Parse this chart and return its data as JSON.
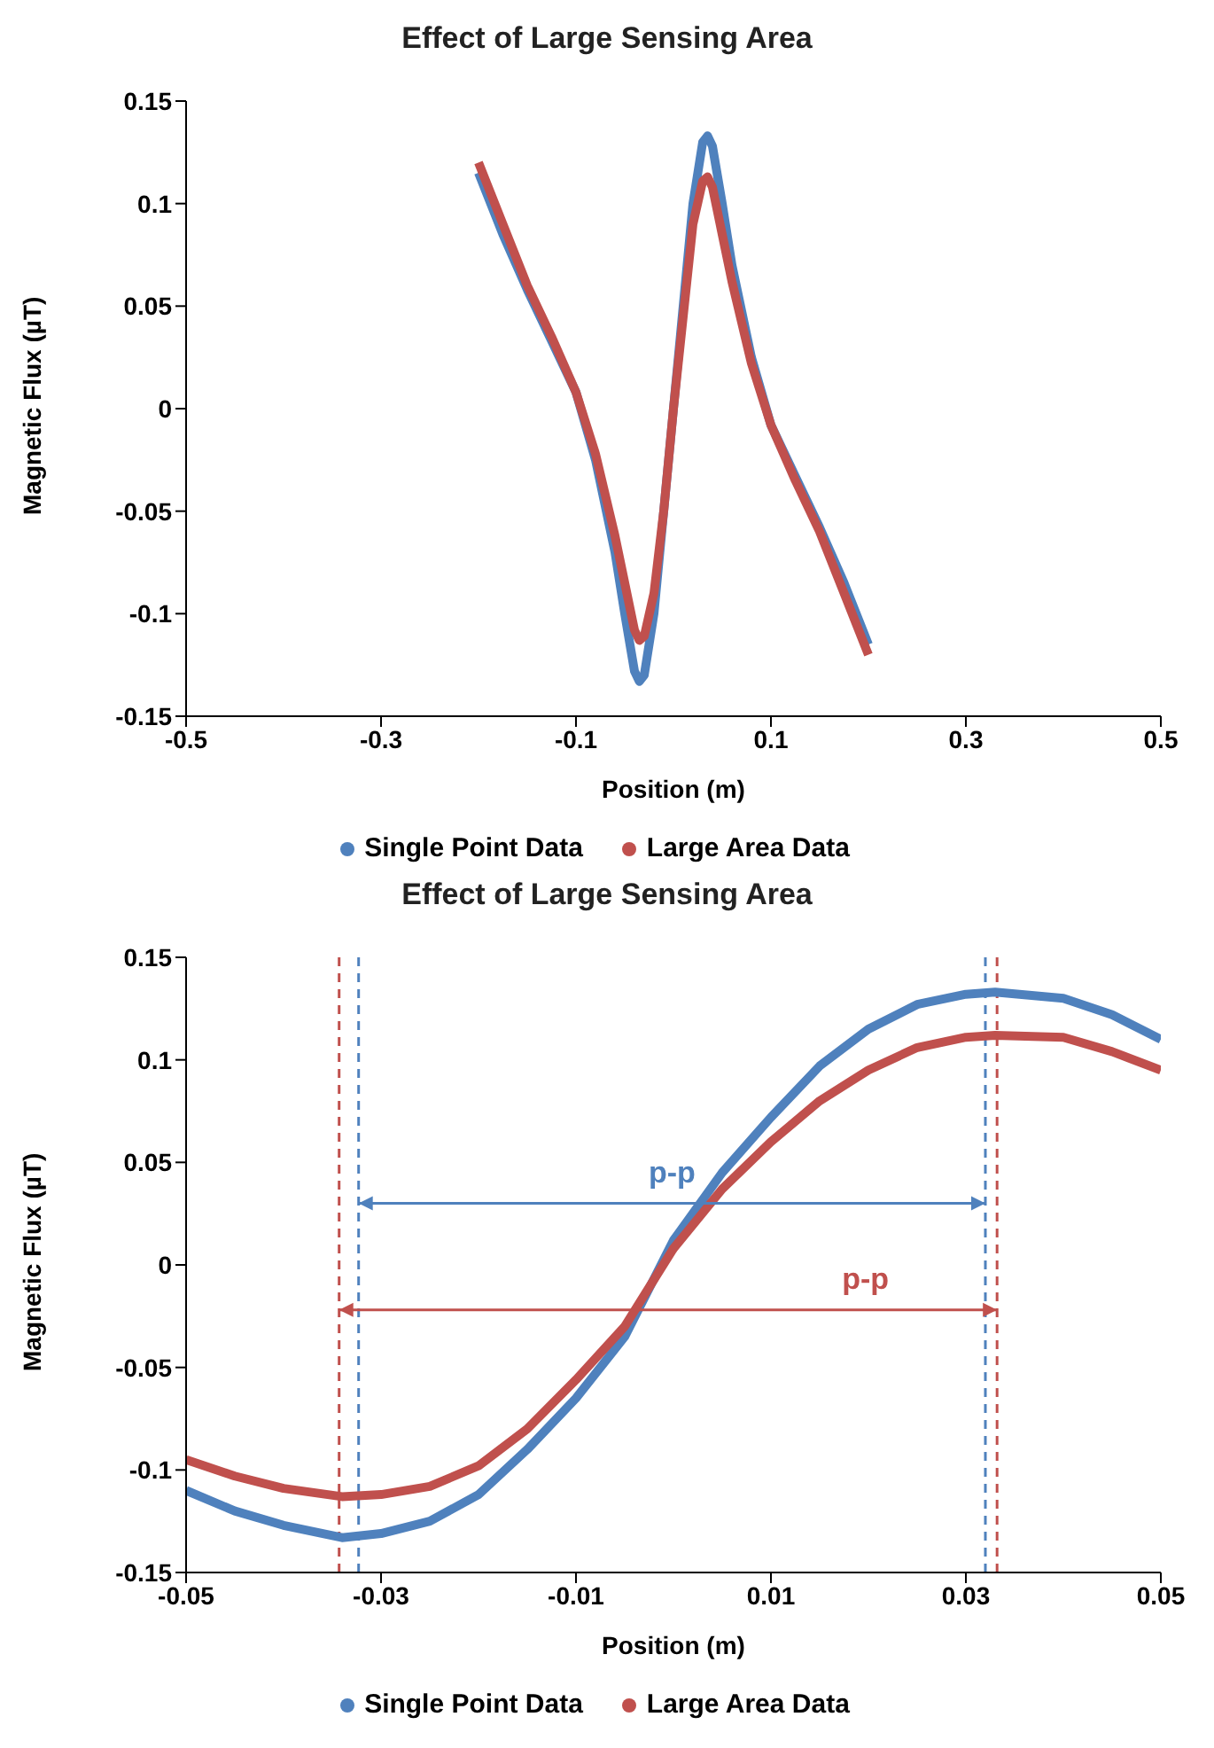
{
  "chart_data": [
    {
      "type": "line",
      "title": "Effect of Large Sensing Area",
      "xlabel": "Position (m)",
      "ylabel": "Magnetic Flux (µT)",
      "xlim": [
        -0.5,
        0.5
      ],
      "xticks": [
        -0.5,
        -0.3,
        -0.1,
        0.1,
        0.3,
        0.5
      ],
      "ylim": [
        -0.15,
        0.15
      ],
      "yticks": [
        -0.15,
        -0.1,
        -0.05,
        0,
        0.05,
        0.1,
        0.15
      ],
      "grid": false,
      "legend": "bottom",
      "line_style": "solid",
      "x": [
        -0.2,
        -0.175,
        -0.15,
        -0.125,
        -0.1,
        -0.08,
        -0.06,
        -0.05,
        -0.04,
        -0.035,
        -0.03,
        -0.02,
        -0.01,
        0,
        0.01,
        0.02,
        0.03,
        0.035,
        0.04,
        0.05,
        0.06,
        0.08,
        0.1,
        0.125,
        0.15,
        0.175,
        0.2
      ],
      "series": [
        {
          "name": "Single Point Data",
          "color": "#4f81bd",
          "values": [
            0.115,
            0.085,
            0.058,
            0.033,
            0.008,
            -0.025,
            -0.07,
            -0.1,
            -0.128,
            -0.133,
            -0.13,
            -0.1,
            -0.05,
            0,
            0.05,
            0.1,
            0.13,
            0.133,
            0.128,
            0.1,
            0.07,
            0.025,
            -0.008,
            -0.033,
            -0.058,
            -0.085,
            -0.115
          ]
        },
        {
          "name": "Large Area Data",
          "color": "#c0504d",
          "values": [
            0.12,
            0.09,
            0.06,
            0.035,
            0.008,
            -0.022,
            -0.062,
            -0.085,
            -0.108,
            -0.113,
            -0.111,
            -0.09,
            -0.05,
            0,
            0.045,
            0.09,
            0.111,
            0.113,
            0.108,
            0.085,
            0.062,
            0.022,
            -0.008,
            -0.035,
            -0.06,
            -0.09,
            -0.12
          ]
        }
      ]
    },
    {
      "type": "line",
      "title": "Effect of Large Sensing Area",
      "xlabel": "Position (m)",
      "ylabel": "Magnetic Flux (µT)",
      "xlim": [
        -0.05,
        0.05
      ],
      "xticks": [
        -0.05,
        -0.03,
        -0.01,
        0.01,
        0.03,
        0.05
      ],
      "ylim": [
        -0.15,
        0.15
      ],
      "yticks": [
        -0.15,
        -0.1,
        -0.05,
        0,
        0.05,
        0.1,
        0.15
      ],
      "grid": false,
      "legend": "bottom",
      "line_style": "solid",
      "x": [
        -0.05,
        -0.045,
        -0.04,
        -0.034,
        -0.03,
        -0.025,
        -0.02,
        -0.015,
        -0.01,
        -0.005,
        0,
        0.005,
        0.01,
        0.015,
        0.02,
        0.025,
        0.03,
        0.033,
        0.04,
        0.045,
        0.05
      ],
      "series": [
        {
          "name": "Single Point Data",
          "color": "#4f81bd",
          "values": [
            -0.11,
            -0.12,
            -0.127,
            -0.133,
            -0.131,
            -0.125,
            -0.112,
            -0.09,
            -0.065,
            -0.035,
            0.012,
            0.045,
            0.072,
            0.097,
            0.115,
            0.127,
            0.132,
            0.133,
            0.13,
            0.122,
            0.11
          ]
        },
        {
          "name": "Large Area Data",
          "color": "#c0504d",
          "values": [
            -0.095,
            -0.103,
            -0.109,
            -0.113,
            -0.112,
            -0.108,
            -0.098,
            -0.08,
            -0.056,
            -0.03,
            0.008,
            0.037,
            0.06,
            0.08,
            0.095,
            0.106,
            0.111,
            0.112,
            0.111,
            0.104,
            0.095
          ]
        }
      ],
      "ref_lines": [
        {
          "axis": "x",
          "value": -0.0323,
          "color": "#4f81bd",
          "line_style": "dashed"
        },
        {
          "axis": "x",
          "value": 0.032,
          "color": "#4f81bd",
          "line_style": "dashed"
        },
        {
          "axis": "x",
          "value": -0.0343,
          "color": "#c0504d",
          "line_style": "dashed"
        },
        {
          "axis": "x",
          "value": 0.0332,
          "color": "#c0504d",
          "line_style": "dashed"
        }
      ],
      "annotations": [
        "p-p",
        "p-p"
      ]
    }
  ]
}
